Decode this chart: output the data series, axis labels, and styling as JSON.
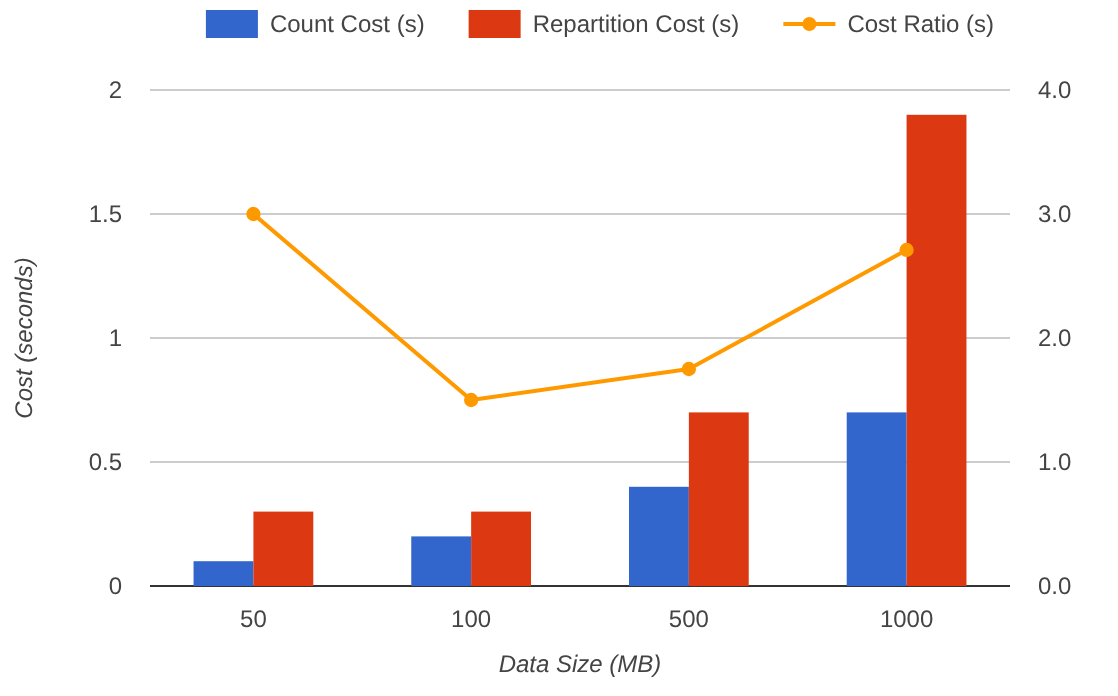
{
  "chart_data": {
    "type": "bar",
    "xlabel": "Data Size (MB)",
    "ylabel": "Cost (seconds)",
    "categories": [
      "50",
      "100",
      "500",
      "1000"
    ],
    "series": [
      {
        "name": "Count Cost (s)",
        "color": "#3366cc",
        "values": [
          0.1,
          0.2,
          0.4,
          0.7
        ]
      },
      {
        "name": "Repartition Cost (s)",
        "color": "#dc3912",
        "values": [
          0.3,
          0.3,
          0.7,
          1.9
        ]
      },
      {
        "name": "Cost Ratio (s)",
        "type": "line",
        "axis": "y2",
        "color": "#ff9900",
        "values": [
          3.0,
          1.5,
          1.75,
          2.71
        ]
      }
    ],
    "ylim": [
      0,
      2
    ],
    "yticks": [
      0,
      0.5,
      1,
      1.5,
      2
    ],
    "y2lim": [
      0,
      4
    ],
    "y2ticks": [
      {
        "value": 0,
        "label": "0.0"
      },
      {
        "value": 1,
        "label": "1.0"
      },
      {
        "value": 2,
        "label": "2.0"
      },
      {
        "value": 3,
        "label": "3.0"
      },
      {
        "value": 4,
        "label": "4.0"
      }
    ],
    "grid": "y",
    "legend": "top",
    "marker": "circle"
  }
}
